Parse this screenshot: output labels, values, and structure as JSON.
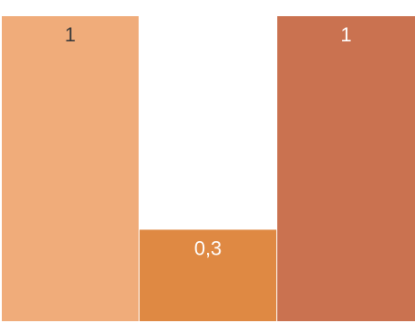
{
  "chart_data": {
    "type": "bar",
    "categories": [
      "",
      "",
      ""
    ],
    "values": [
      1,
      0.3,
      1
    ],
    "data_labels": [
      "1",
      "0,3",
      "1"
    ],
    "colors": [
      "#F0AC7A",
      "#DF8943",
      "#CA7250"
    ],
    "label_colors": [
      "#3a3a3a",
      "#ffffff",
      "#ffffff"
    ],
    "title": "",
    "xlabel": "",
    "ylabel": "",
    "ylim": [
      0,
      1
    ],
    "grid": false,
    "legend": "none"
  }
}
